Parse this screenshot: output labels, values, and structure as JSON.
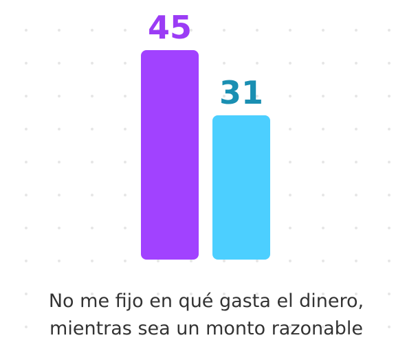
{
  "chart_data": {
    "type": "bar",
    "values": [
      45,
      31
    ],
    "colors": [
      "#a142ff",
      "#4ccfff"
    ],
    "label_colors": [
      "#9b3cf5",
      "#1a8fb2"
    ],
    "caption": [
      "No me fijo en qué gasta el dinero,",
      "mientras sea un monto razonable"
    ]
  }
}
